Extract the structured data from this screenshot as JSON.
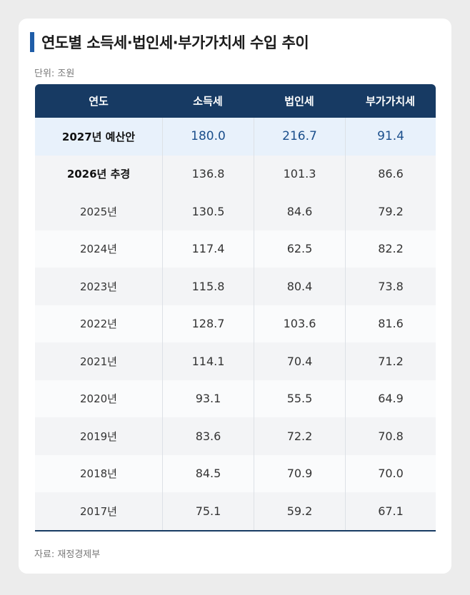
{
  "title": "연도별 소득세·법인세·부가가치세 수입 추이",
  "unit": "단위: 조원",
  "source": "자료: 재정경제부",
  "colors": {
    "header": "#173a63",
    "accent": "#1f5da8",
    "highlight_row": "#e8f1fb"
  },
  "chart_data": {
    "type": "table",
    "columns": [
      "연도",
      "소득세",
      "법인세",
      "부가가치세"
    ],
    "rows": [
      [
        "2027년 예산안",
        "180.0",
        "216.7",
        "91.4"
      ],
      [
        "2026년 추경",
        "136.8",
        "101.3",
        "86.6"
      ],
      [
        "2025년",
        "130.5",
        "84.6",
        "79.2"
      ],
      [
        "2024년",
        "117.4",
        "62.5",
        "82.2"
      ],
      [
        "2023년",
        "115.8",
        "80.4",
        "73.8"
      ],
      [
        "2022년",
        "128.7",
        "103.6",
        "81.6"
      ],
      [
        "2021년",
        "114.1",
        "70.4",
        "71.2"
      ],
      [
        "2020년",
        "93.1",
        "55.5",
        "64.9"
      ],
      [
        "2019년",
        "83.6",
        "72.2",
        "70.8"
      ],
      [
        "2018년",
        "84.5",
        "70.9",
        "70.0"
      ],
      [
        "2017년",
        "75.1",
        "59.2",
        "67.1"
      ]
    ]
  }
}
